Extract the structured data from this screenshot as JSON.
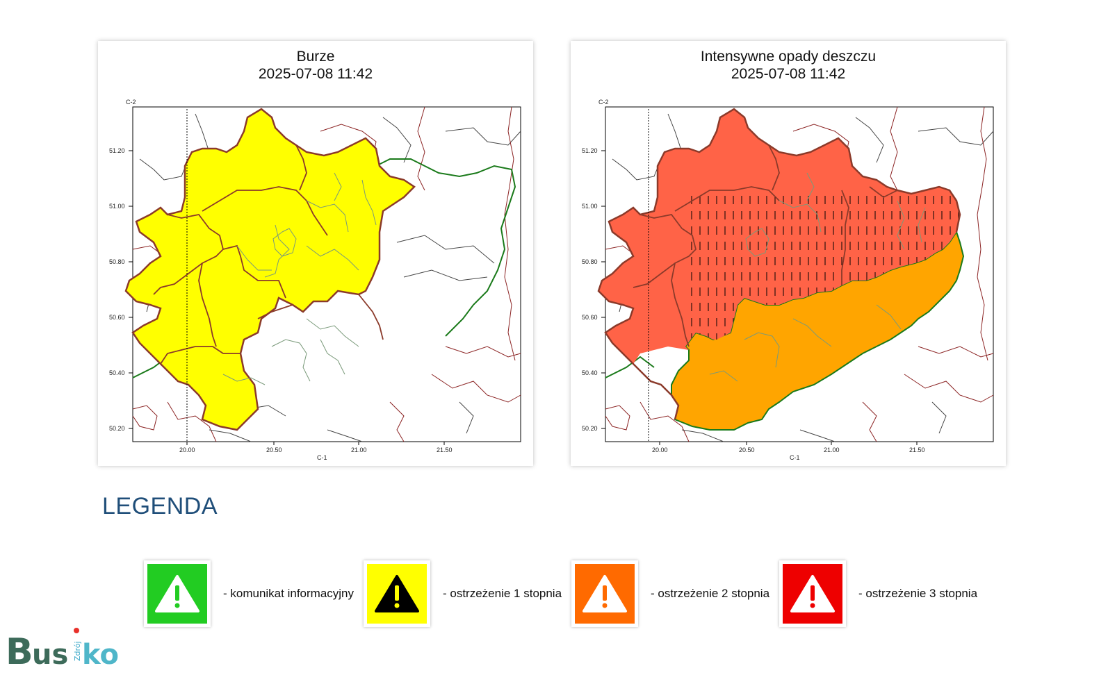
{
  "maps": [
    {
      "title": "Burze",
      "datetime": "2025-07-08 11:42",
      "region_color_main": "#ffff00",
      "hatch": false,
      "warning_level": "ostrzeżenie 1 stopnia"
    },
    {
      "title": "Intensywne opady deszczu",
      "datetime": "2025-07-08 11:42",
      "region_color_main": "#ff6347",
      "region_color_south": "#ffa500",
      "hatch": true,
      "warning_level_north": "ostrzeżenie 3 stopnia",
      "warning_level_south": "ostrzeżenie 2 stopnia"
    }
  ],
  "axes": {
    "corner_label_top": "C-2",
    "corner_label_bottom": "C-1",
    "y_ticks": [
      "51.20",
      "51.00",
      "50.80",
      "50.60",
      "50.40",
      "50.20"
    ],
    "x_ticks": [
      "20.00",
      "20.50",
      "21.00",
      "21.50"
    ]
  },
  "legend": {
    "title": "LEGENDA",
    "items": [
      {
        "label": "- komunikat informacyjny",
        "color": "#22cc22",
        "icon": "warning-icon-white",
        "symbol_color": "#ffffff"
      },
      {
        "label": "- ostrzeżenie 1 stopnia",
        "color": "#ffff00",
        "icon": "warning-icon-black",
        "symbol_color": "#000000"
      },
      {
        "label": "- ostrzeżenie 2 stopnia",
        "color": "#ff6a00",
        "icon": "warning-icon-white",
        "symbol_color": "#ffffff"
      },
      {
        "label": "- ostrzeżenie 3 stopnia",
        "color": "#ee0000",
        "icon": "warning-icon-white",
        "symbol_color": "#ffffff"
      }
    ]
  },
  "logo": {
    "text_main": "Busko",
    "text_small": "Zdrój"
  }
}
